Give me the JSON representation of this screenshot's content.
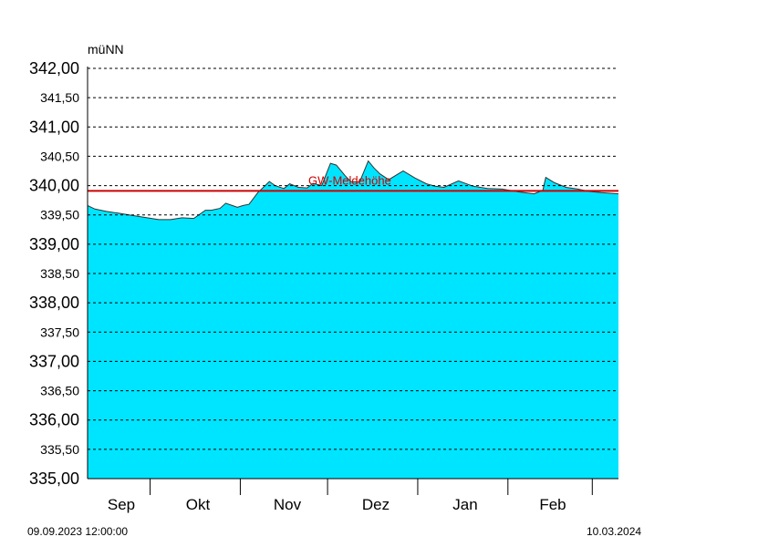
{
  "chart_data": {
    "type": "area",
    "ylabel": "müNN",
    "ylim": [
      335.0,
      342.0
    ],
    "y_ticks_major": [
      "342,00",
      "341,00",
      "340,00",
      "339,00",
      "338,00",
      "337,00",
      "336,00",
      "335,00"
    ],
    "y_ticks_minor": [
      "341,50",
      "340,50",
      "339,50",
      "338,50",
      "337,50",
      "336,50",
      "335,50"
    ],
    "months": [
      "Sep",
      "Okt",
      "Nov",
      "Dez",
      "Jan",
      "Feb"
    ],
    "x_start": "09.09.2023 12:00:00",
    "x_end": "10.03.2024",
    "series": [
      {
        "x": [
          "2023-09-09",
          "2023-09-12",
          "2023-09-16",
          "2023-09-20",
          "2023-09-25",
          "2023-09-30",
          "2023-10-04",
          "2023-10-08",
          "2023-10-12",
          "2023-10-16",
          "2023-10-20",
          "2023-10-22",
          "2023-10-25",
          "2023-10-27",
          "2023-10-31",
          "2023-11-02",
          "2023-11-04",
          "2023-11-07",
          "2023-11-11",
          "2023-11-13",
          "2023-11-16",
          "2023-11-18",
          "2023-11-21",
          "2023-11-24",
          "2023-11-26",
          "2023-11-29",
          "2023-12-02",
          "2023-12-04",
          "2023-12-07",
          "2023-12-09",
          "2023-12-12",
          "2023-12-15",
          "2023-12-17",
          "2023-12-19",
          "2023-12-22",
          "2023-12-27",
          "2023-12-31",
          "2024-01-04",
          "2024-01-07",
          "2024-01-10",
          "2024-01-15",
          "2024-01-20",
          "2024-01-25",
          "2024-01-30",
          "2024-02-05",
          "2024-02-10",
          "2024-02-13",
          "2024-02-14",
          "2024-02-17",
          "2024-02-21",
          "2024-02-25",
          "2024-02-29",
          "2024-03-04",
          "2024-03-10"
        ],
        "values": [
          339.66,
          339.6,
          339.56,
          339.53,
          339.49,
          339.45,
          339.42,
          339.42,
          339.45,
          339.44,
          339.58,
          339.58,
          339.61,
          339.7,
          339.63,
          339.66,
          339.68,
          339.88,
          340.07,
          340.0,
          339.95,
          340.03,
          339.97,
          339.96,
          340.04,
          340.0,
          340.38,
          340.35,
          340.17,
          340.07,
          340.06,
          340.42,
          340.3,
          340.2,
          340.1,
          340.25,
          340.13,
          340.03,
          339.99,
          339.97,
          340.08,
          339.99,
          339.95,
          339.94,
          339.89,
          339.86,
          339.92,
          340.14,
          340.05,
          339.97,
          339.94,
          339.9,
          339.88,
          339.86
        ]
      }
    ],
    "threshold": {
      "label": "GW-Meldehöhe",
      "value": 339.91,
      "color": "#cc0000"
    },
    "fill_color": "#00e5ff",
    "grid": true
  }
}
